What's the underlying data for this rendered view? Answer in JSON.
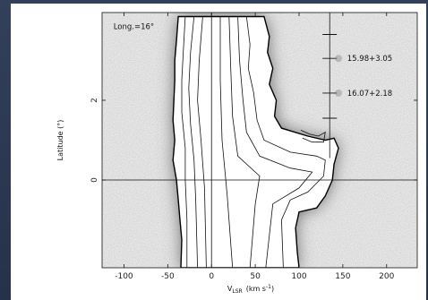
{
  "chart_data": {
    "type": "heatmap",
    "xlabel_main": "V",
    "xlabel_sub": "LSR",
    "xlabel_unit": "(km s",
    "xlabel_exp": "-1",
    "xlabel_close": ")",
    "ylabel": "Latitude (°)",
    "xlim": [
      -125,
      235
    ],
    "ylim": [
      -2.2,
      4.2
    ],
    "x_ticks": [
      -100,
      -50,
      0,
      50,
      100,
      150,
      200
    ],
    "y_ticks": [
      0,
      2
    ],
    "grid_lines": {
      "x": [
        0
      ],
      "y": [
        0
      ]
    },
    "annotations": [
      {
        "text": "Long.=16°",
        "x": -112,
        "y": 3.85
      },
      {
        "text": "15.98+3.05",
        "x": 155,
        "y": 3.05
      },
      {
        "text": "16.07+2.18",
        "x": 155,
        "y": 2.18
      }
    ],
    "markers": [
      {
        "x": 135,
        "y": 3.05
      },
      {
        "x": 135,
        "y": 2.18
      }
    ],
    "emission_region": {
      "left_edge": [
        [
          -38,
          4.1
        ],
        [
          -40,
          3.5
        ],
        [
          -42,
          3.0
        ],
        [
          -42,
          2.5
        ],
        [
          -43,
          2.0
        ],
        [
          -44,
          1.5
        ],
        [
          -42,
          1.0
        ],
        [
          -44,
          0.5
        ],
        [
          -40,
          0.0
        ],
        [
          -38,
          -0.5
        ],
        [
          -36,
          -1.0
        ],
        [
          -34,
          -1.5
        ],
        [
          -35,
          -2.2
        ]
      ],
      "right_edge": [
        [
          60,
          4.1
        ],
        [
          66,
          3.6
        ],
        [
          64,
          3.2
        ],
        [
          70,
          2.8
        ],
        [
          66,
          2.4
        ],
        [
          74,
          2.0
        ],
        [
          72,
          1.6
        ],
        [
          80,
          1.3
        ],
        [
          110,
          1.1
        ],
        [
          130,
          1.0
        ],
        [
          140,
          1.05
        ],
        [
          145,
          0.8
        ],
        [
          140,
          0.4
        ],
        [
          138,
          0.0
        ],
        [
          130,
          -0.4
        ],
        [
          120,
          -0.7
        ],
        [
          100,
          -0.8
        ],
        [
          96,
          -1.2
        ],
        [
          98,
          -1.8
        ],
        [
          100,
          -2.2
        ]
      ]
    },
    "contours": [
      [
        [
          -30,
          4.1
        ],
        [
          -32,
          3.3
        ],
        [
          -34,
          2.5
        ],
        [
          -34,
          1.7
        ],
        [
          -30,
          0.8
        ],
        [
          -30,
          0.0
        ],
        [
          -28,
          -1.0
        ],
        [
          -28,
          -2.2
        ]
      ],
      [
        [
          -20,
          4.1
        ],
        [
          -24,
          3.2
        ],
        [
          -26,
          2.3
        ],
        [
          -24,
          1.4
        ],
        [
          -20,
          0.5
        ],
        [
          -18,
          -0.5
        ],
        [
          -16,
          -2.2
        ]
      ],
      [
        [
          -10,
          4.1
        ],
        [
          -14,
          3.0
        ],
        [
          -16,
          2.0
        ],
        [
          -12,
          1.0
        ],
        [
          -8,
          -0.2
        ],
        [
          -6,
          -2.2
        ]
      ],
      [
        [
          40,
          4.1
        ],
        [
          44,
          3.4
        ],
        [
          42,
          2.8
        ],
        [
          48,
          2.2
        ],
        [
          52,
          1.5
        ],
        [
          60,
          1.0
        ],
        [
          90,
          0.7
        ],
        [
          120,
          0.6
        ],
        [
          130,
          0.5
        ],
        [
          128,
          0.1
        ],
        [
          110,
          -0.3
        ],
        [
          90,
          -0.5
        ],
        [
          80,
          -1.0
        ],
        [
          82,
          -2.2
        ]
      ],
      [
        [
          30,
          4.1
        ],
        [
          32,
          3.0
        ],
        [
          36,
          2.0
        ],
        [
          40,
          1.2
        ],
        [
          55,
          0.6
        ],
        [
          90,
          0.3
        ],
        [
          115,
          0.2
        ],
        [
          100,
          -0.2
        ],
        [
          70,
          -0.6
        ],
        [
          62,
          -2.2
        ]
      ],
      [
        [
          20,
          4.1
        ],
        [
          22,
          2.8
        ],
        [
          24,
          1.6
        ],
        [
          30,
          0.6
        ],
        [
          55,
          0.1
        ],
        [
          50,
          -0.6
        ],
        [
          44,
          -2.2
        ]
      ],
      [
        [
          10,
          4.1
        ],
        [
          10,
          2.5
        ],
        [
          12,
          1.0
        ],
        [
          18,
          -0.4
        ],
        [
          24,
          -2.2
        ]
      ],
      [
        [
          102,
          1.25
        ],
        [
          112,
          1.15
        ],
        [
          122,
          1.1
        ],
        [
          130,
          1.2
        ],
        [
          128,
          0.95
        ],
        [
          115,
          0.95
        ],
        [
          104,
          1.05
        ]
      ]
    ]
  }
}
